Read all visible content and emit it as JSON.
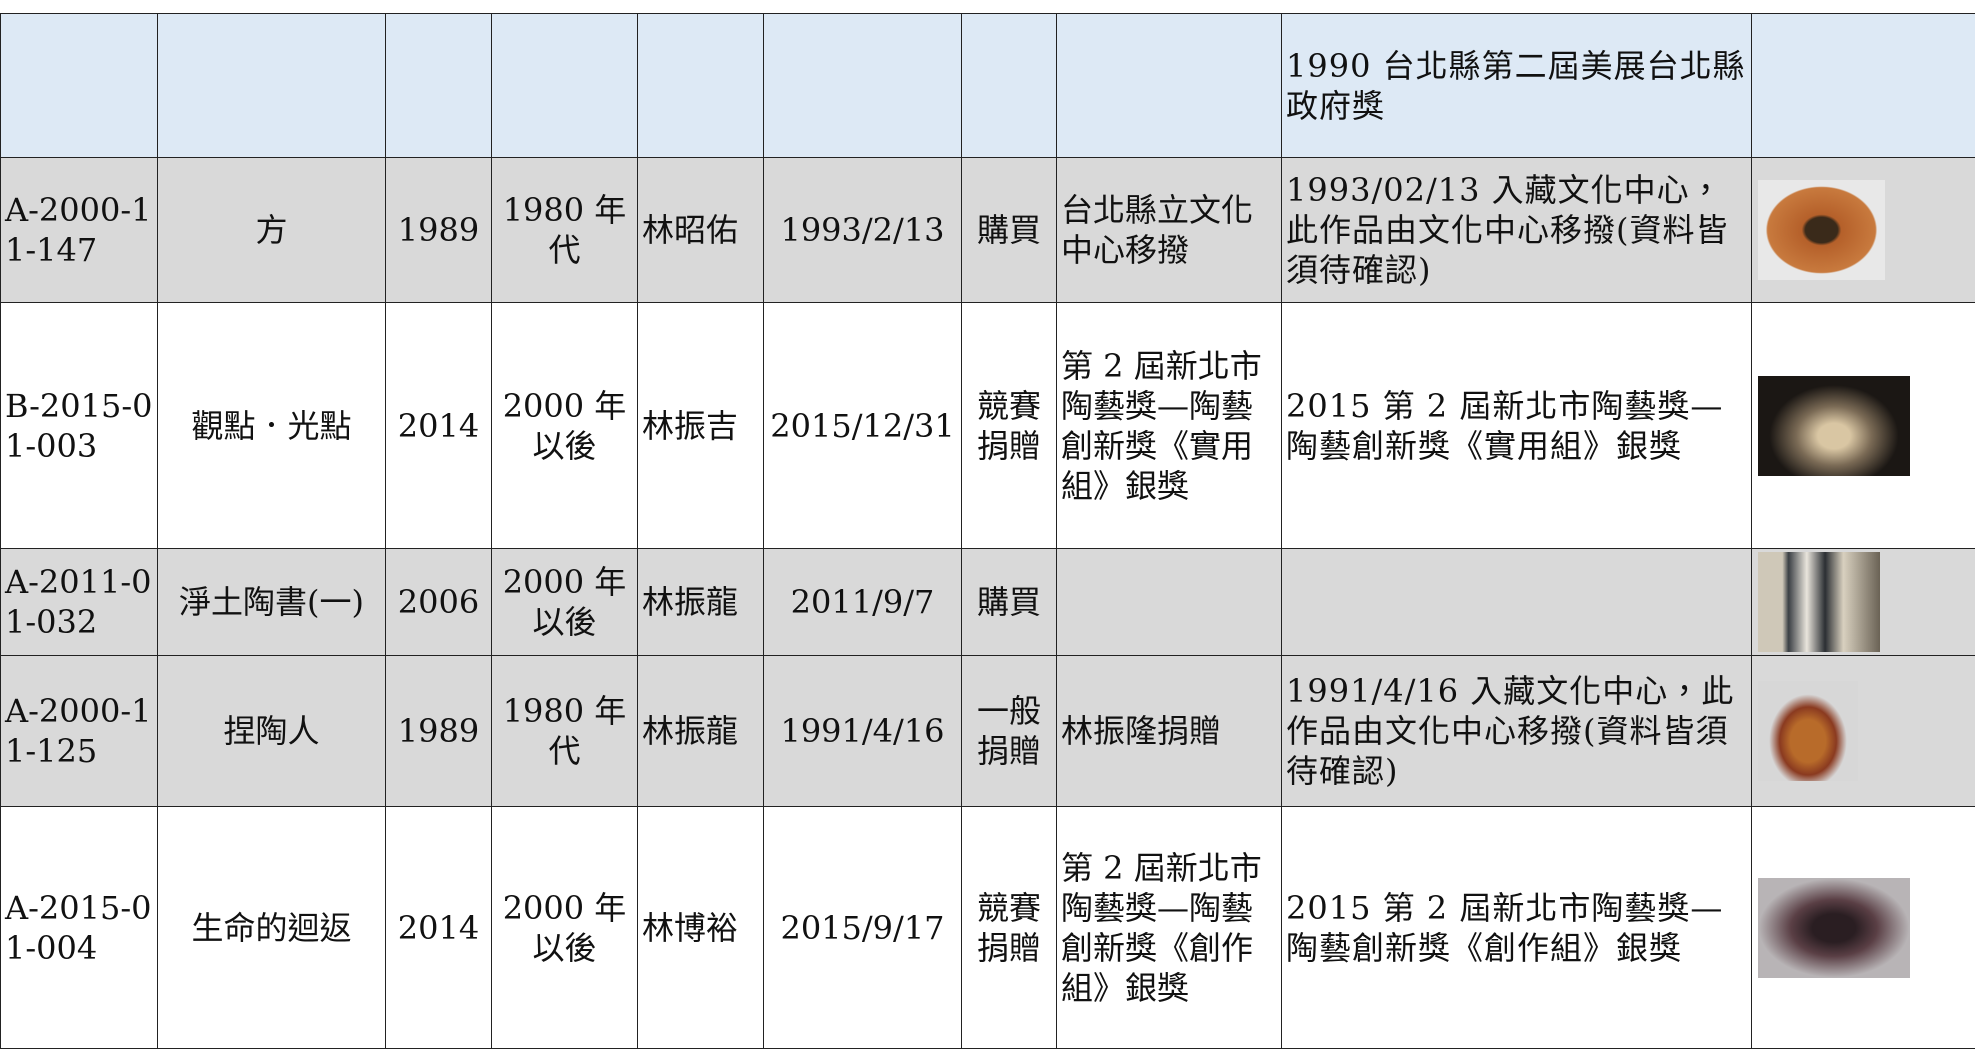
{
  "table": {
    "rows": [
      {
        "note": "1990 台北縣第二屆美展台北縣政府獎"
      },
      {
        "id": "A-2000-11-147",
        "title": "方",
        "year": "1989",
        "period": "1980 年代",
        "artist": "林昭佑",
        "date": "1993/2/13",
        "method": "購買",
        "source": "台北縣立文化中心移撥",
        "note": "1993/02/13 入藏文化中心，此作品由文化中心移撥(資料皆須待確認)"
      },
      {
        "id": "B-2015-01-003",
        "title": "觀點．光點",
        "year": "2014",
        "period": "2000 年以後",
        "artist": "林振吉",
        "date": "2015/12/31",
        "method": "競賽捐贈",
        "source": "第 2 屆新北市陶藝獎—陶藝創新獎《實用組》銀獎",
        "note": "2015 第 2 屆新北市陶藝獎—陶藝創新獎《實用組》銀獎"
      },
      {
        "id": "A-2011-01-032",
        "title": "淨土陶書(一)",
        "year": "2006",
        "period": "2000 年以後",
        "artist": "林振龍",
        "date": "2011/9/7",
        "method": "購買"
      },
      {
        "id": "A-2000-11-125",
        "title": "捏陶人",
        "year": "1989",
        "period": "1980 年代",
        "artist": "林振龍",
        "date": "1991/4/16",
        "method": "一般捐贈",
        "source": "林振隆捐贈",
        "note": "1991/4/16 入藏文化中心，此作品由文化中心移撥(資料皆須待確認)"
      },
      {
        "id": "A-2015-01-004",
        "title": "生命的迴返",
        "year": "2014",
        "period": "2000 年以後",
        "artist": "林博裕",
        "date": "2015/9/17",
        "method": "競賽捐贈",
        "source": "第 2 屆新北市陶藝獎—陶藝創新獎《創作組》銀獎",
        "note": "2015 第 2 屆新北市陶藝獎—陶藝創新獎《創作組》銀獎"
      }
    ]
  }
}
